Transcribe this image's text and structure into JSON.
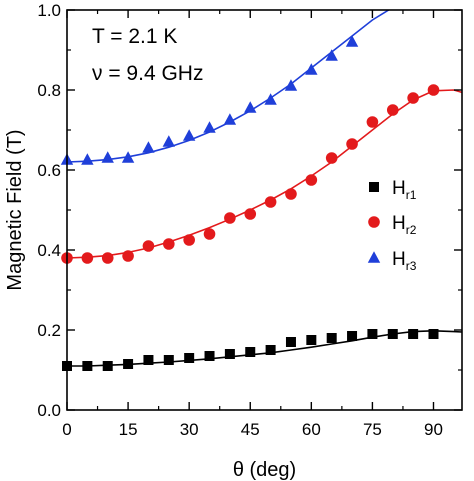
{
  "chart_data": {
    "type": "scatter",
    "xlabel": "θ (deg)",
    "ylabel": "Magnetic Field (T)",
    "xlim": [
      0,
      97
    ],
    "ylim": [
      0.0,
      1.0
    ],
    "xticks": [
      0,
      15,
      30,
      45,
      60,
      75,
      90
    ],
    "xtick_labels": [
      "0",
      "15",
      "30",
      "45",
      "60",
      "75",
      "90"
    ],
    "yticks": [
      0.0,
      0.2,
      0.4,
      0.6,
      0.8,
      1.0
    ],
    "ytick_labels": [
      "0.0",
      "0.2",
      "0.4",
      "0.6",
      "0.8",
      "1.0"
    ],
    "grid": false,
    "legend_position": "right-middle",
    "annotations": [
      "T = 2.1 K",
      "ν = 9.4 GHz"
    ],
    "series": [
      {
        "name": "H",
        "subscript": "r1",
        "marker": "square",
        "color": "#000000",
        "x": [
          0,
          5,
          10,
          15,
          20,
          25,
          30,
          35,
          40,
          45,
          50,
          55,
          60,
          65,
          70,
          75,
          80,
          85,
          90
        ],
        "y": [
          0.11,
          0.11,
          0.11,
          0.115,
          0.125,
          0.125,
          0.13,
          0.135,
          0.14,
          0.145,
          0.15,
          0.17,
          0.175,
          0.18,
          0.185,
          0.19,
          0.19,
          0.19,
          0.19
        ],
        "fit_x": [
          0,
          5,
          10,
          15,
          20,
          25,
          30,
          35,
          40,
          45,
          50,
          55,
          60,
          65,
          70,
          75,
          80,
          85,
          90,
          95,
          97
        ],
        "fit_y": [
          0.11,
          0.11,
          0.112,
          0.114,
          0.117,
          0.12,
          0.124,
          0.128,
          0.133,
          0.138,
          0.143,
          0.15,
          0.157,
          0.165,
          0.173,
          0.182,
          0.19,
          0.196,
          0.198,
          0.196,
          0.195
        ]
      },
      {
        "name": "H",
        "subscript": "r2",
        "marker": "circle",
        "color": "#e31a1c",
        "x": [
          0,
          5,
          10,
          15,
          20,
          25,
          30,
          35,
          40,
          45,
          50,
          55,
          60,
          65,
          70,
          75,
          80,
          85,
          90
        ],
        "y": [
          0.38,
          0.38,
          0.38,
          0.385,
          0.41,
          0.415,
          0.425,
          0.44,
          0.48,
          0.49,
          0.52,
          0.54,
          0.575,
          0.63,
          0.665,
          0.72,
          0.75,
          0.78,
          0.8
        ],
        "fit_x": [
          0,
          5,
          10,
          15,
          20,
          25,
          30,
          35,
          40,
          45,
          50,
          55,
          60,
          65,
          70,
          75,
          80,
          85,
          90,
          95,
          97
        ],
        "fit_y": [
          0.38,
          0.382,
          0.386,
          0.394,
          0.405,
          0.42,
          0.437,
          0.456,
          0.477,
          0.5,
          0.525,
          0.553,
          0.585,
          0.62,
          0.66,
          0.7,
          0.74,
          0.775,
          0.798,
          0.8,
          0.794
        ]
      },
      {
        "name": "H",
        "subscript": "r3",
        "marker": "triangle",
        "color": "#1f3fd9",
        "x": [
          0,
          5,
          10,
          15,
          20,
          25,
          30,
          35,
          40,
          45,
          50,
          55,
          60,
          65,
          70
        ],
        "y": [
          0.625,
          0.625,
          0.63,
          0.63,
          0.655,
          0.67,
          0.685,
          0.705,
          0.725,
          0.755,
          0.775,
          0.81,
          0.85,
          0.885,
          0.92
        ],
        "fit_x": [
          0,
          5,
          10,
          15,
          20,
          25,
          30,
          35,
          40,
          45,
          50,
          55,
          60,
          65,
          70,
          75,
          79
        ],
        "fit_y": [
          0.62,
          0.622,
          0.626,
          0.633,
          0.643,
          0.657,
          0.674,
          0.695,
          0.72,
          0.748,
          0.78,
          0.815,
          0.855,
          0.895,
          0.935,
          0.975,
          1.0
        ]
      }
    ]
  }
}
